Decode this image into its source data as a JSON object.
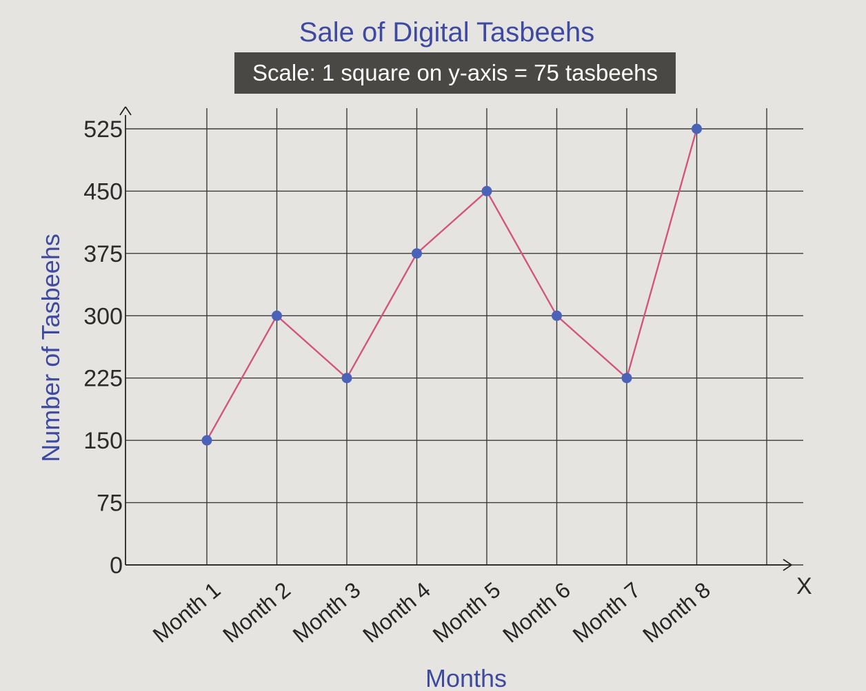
{
  "chart_data": {
    "type": "line",
    "title": "Sale of Digital Tasbeehs",
    "subtitle": "Scale: 1 square on y-axis = 75 tasbeehs",
    "xlabel": "Months",
    "ylabel": "Number of Tasbeehs",
    "x_axis_marker": "X",
    "categories": [
      "Month 1",
      "Month 2",
      "Month 3",
      "Month 4",
      "Month 5",
      "Month 6",
      "Month 7",
      "Month 8"
    ],
    "values": [
      150,
      300,
      225,
      375,
      450,
      300,
      225,
      525
    ],
    "y_ticks": [
      0,
      75,
      150,
      225,
      300,
      375,
      450,
      525
    ],
    "ylim": [
      0,
      525
    ],
    "grid": true,
    "legend": "none",
    "colors": {
      "line": "#d2557c",
      "point": "#4a63b8",
      "grid": "#3a3a3a",
      "title": "#3d4aa0",
      "subtitle_bg": "#4a4845",
      "subtitle_text": "#ffffff"
    }
  }
}
